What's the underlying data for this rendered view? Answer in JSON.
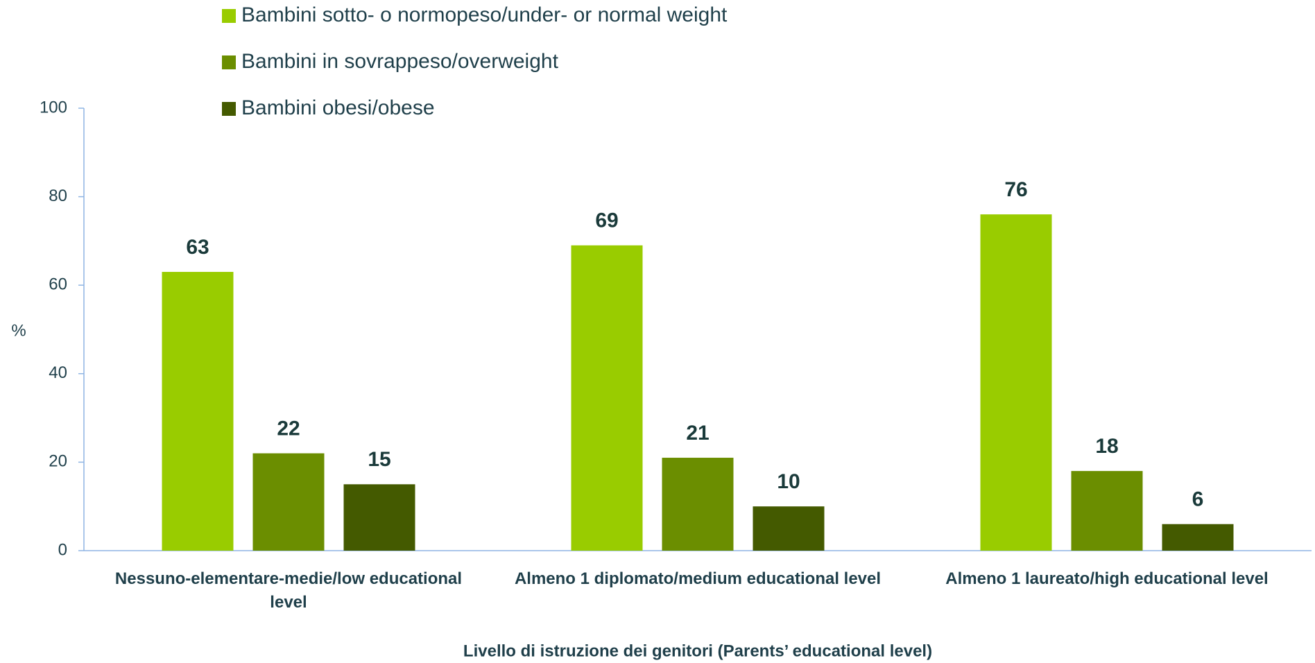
{
  "chart_data": {
    "type": "bar",
    "x_label": "Livello di istruzione dei genitori (Parents’ educational level)",
    "y_label": "%",
    "categories": [
      "Nessuno-elementare-medie/low educational level",
      "Almeno 1 diplomato/medium educational level",
      "Almeno 1 laureato/high educational level"
    ],
    "series": [
      {
        "name": "Bambini sotto- o normopeso/under- or normal weight",
        "color": "#99cc00",
        "values": [
          63,
          69,
          76
        ]
      },
      {
        "name": "Bambini in sovrappeso/overweight",
        "color": "#6b8e00",
        "values": [
          22,
          21,
          18
        ]
      },
      {
        "name": "Bambini obesi/obese",
        "color": "#445a00",
        "values": [
          15,
          10,
          6
        ]
      }
    ],
    "ylim": [
      0,
      100
    ],
    "yticks": [
      0,
      20,
      40,
      60,
      80,
      100
    ],
    "grid": false
  }
}
